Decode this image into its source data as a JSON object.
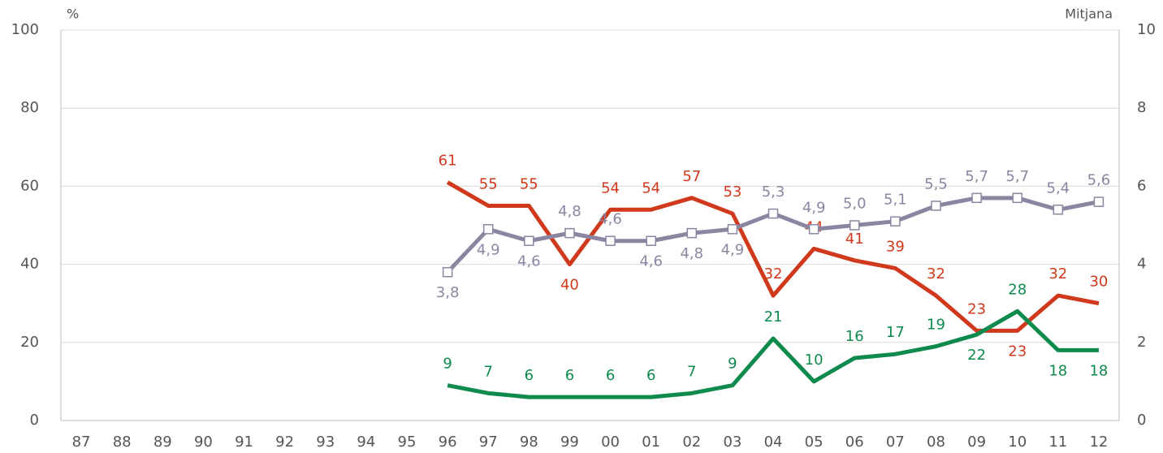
{
  "chart_data": {
    "type": "line",
    "ylabel": "%",
    "y2label": "Mitjana",
    "categories": [
      "87",
      "88",
      "89",
      "90",
      "91",
      "92",
      "93",
      "94",
      "95",
      "96",
      "97",
      "98",
      "99",
      "00",
      "01",
      "02",
      "03",
      "04",
      "05",
      "06",
      "07",
      "08",
      "09",
      "10",
      "11",
      "12"
    ],
    "ylim": [
      0,
      100
    ],
    "yticks": [
      0,
      20,
      40,
      60,
      80,
      100
    ],
    "y2lim": [
      0,
      10
    ],
    "y2ticks": [
      0,
      2,
      4,
      6,
      8,
      10
    ],
    "grid": true,
    "series": [
      {
        "color": "#d0391b",
        "values": [
          null,
          null,
          null,
          null,
          null,
          null,
          null,
          null,
          null,
          61,
          55,
          55,
          40,
          54,
          54,
          57,
          53,
          32,
          44,
          41,
          39,
          32,
          23,
          23,
          32,
          30
        ]
      },
      {
        "color": "#0e8a4d",
        "values": [
          null,
          null,
          null,
          null,
          null,
          null,
          null,
          null,
          null,
          9,
          7,
          6,
          6,
          6,
          6,
          7,
          9,
          21,
          10,
          16,
          17,
          19,
          22,
          28,
          18,
          18
        ]
      },
      {
        "color": "#8c85a2",
        "axis": "y2",
        "marker": "square",
        "values": [
          null,
          null,
          null,
          null,
          null,
          null,
          null,
          null,
          null,
          3.8,
          4.9,
          4.6,
          4.8,
          4.6,
          4.6,
          4.8,
          4.9,
          5.3,
          4.9,
          5.0,
          5.1,
          5.5,
          5.7,
          5.7,
          5.4,
          5.6
        ],
        "value_labels": [
          null,
          null,
          null,
          null,
          null,
          null,
          null,
          null,
          null,
          "3,8",
          "4,9",
          "4,6",
          "4,8",
          "4,6",
          "4,6",
          "4,8",
          "4,9",
          "5,3",
          "4,9",
          "5,0",
          "5,1",
          "5,5",
          "5,7",
          "5,7",
          "5,4",
          "5,6"
        ]
      }
    ]
  }
}
